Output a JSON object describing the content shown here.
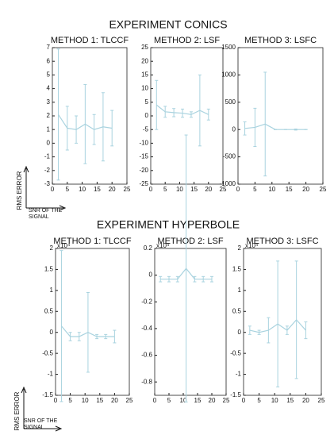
{
  "figure": {
    "sections": [
      {
        "title": "EXPERIMENT CONICS",
        "y_axis_label": "RMS ERROR",
        "x_axis_label": "SNR OF THE SIGNAL"
      },
      {
        "title": "EXPERIMENT HYPERBOLE",
        "y_axis_label": "RMS ERROR",
        "x_axis_label": "SNR OF THE SIGNAL"
      }
    ]
  },
  "chart_data": [
    {
      "type": "line",
      "title": "METHOD 1: TLCCF",
      "color": "#a9d3df",
      "x": [
        2,
        5,
        8,
        11,
        14,
        17,
        20
      ],
      "values": [
        2.1,
        1.1,
        1.0,
        1.4,
        1.0,
        1.2,
        1.1
      ],
      "errors": [
        4.8,
        1.6,
        1.0,
        2.9,
        1.1,
        2.5,
        1.3
      ],
      "xlim": [
        0,
        25
      ],
      "xticks": [
        0,
        5,
        10,
        15,
        20,
        25
      ],
      "ylim": [
        -3,
        7
      ],
      "yticks": [
        -3,
        -2,
        -1,
        0,
        1,
        2,
        3,
        4,
        5,
        6,
        7
      ]
    },
    {
      "type": "line",
      "title": "METHOD 2: LSF",
      "color": "#a9d3df",
      "x": [
        2,
        5,
        8,
        11,
        14,
        17,
        20
      ],
      "values": [
        4,
        1.5,
        1.2,
        1,
        0.5,
        2,
        0.5
      ],
      "errors": [
        9,
        2,
        1.5,
        1.5,
        1,
        13,
        2
      ],
      "xlim": [
        0,
        25
      ],
      "xticks": [
        0,
        5,
        10,
        15,
        20,
        25
      ],
      "ylim": [
        -25,
        25
      ],
      "yticks": [
        -25,
        -20,
        -15,
        -10,
        -5,
        0,
        5,
        10,
        15,
        20,
        25
      ]
    },
    {
      "type": "line",
      "title": "METHOD 3: LSFC",
      "color": "#a9d3df",
      "x": [
        2,
        5,
        8,
        11,
        14,
        17,
        20
      ],
      "values": [
        20,
        40,
        100,
        0,
        0,
        0,
        0
      ],
      "errors": [
        120,
        350,
        950,
        0,
        0,
        10,
        0
      ],
      "xlim": [
        0,
        25
      ],
      "xticks": [
        0,
        5,
        10,
        15,
        20,
        25
      ],
      "ylim": [
        -1000,
        1500
      ],
      "yticks": [
        -1000,
        -500,
        0,
        500,
        1000,
        1500
      ]
    },
    {
      "type": "line",
      "title": "METHOD 1: TLCCF",
      "y_multiplier": "x10⁴",
      "color": "#a9d3df",
      "x": [
        2,
        5,
        8,
        11,
        14,
        17,
        20
      ],
      "values": [
        0.15,
        -0.1,
        -0.1,
        0,
        -0.1,
        -0.1,
        -0.1
      ],
      "errors": [
        1.8,
        0.1,
        0.1,
        0.95,
        0.05,
        0.05,
        0.15
      ],
      "xlim": [
        0,
        25
      ],
      "xticks": [
        0,
        5,
        10,
        15,
        20,
        25
      ],
      "ylim": [
        -1.5,
        2
      ],
      "yticks": [
        -1.5,
        -1,
        -0.5,
        0,
        0.5,
        1,
        1.5,
        2
      ]
    },
    {
      "type": "line",
      "title": "METHOD 2: LSF",
      "y_multiplier": "x10⁴",
      "color": "#a9d3df",
      "x": [
        2,
        5,
        8,
        11,
        14,
        17,
        20
      ],
      "values": [
        -0.03,
        -0.03,
        -0.03,
        0.05,
        -0.03,
        -0.03,
        -0.03
      ],
      "errors": [
        0.02,
        0.02,
        0.02,
        1,
        0.02,
        0.02,
        0.02
      ],
      "xlim": [
        0,
        25
      ],
      "xticks": [
        0,
        5,
        10,
        15,
        20,
        25
      ],
      "ylim": [
        -0.9,
        0.2
      ],
      "yticks": [
        -0.8,
        -0.6,
        -0.4,
        -0.2,
        0,
        0.2
      ]
    },
    {
      "type": "line",
      "title": "METHOD 3: LSFC",
      "y_multiplier": "x10⁴",
      "color": "#a9d3df",
      "x": [
        2,
        5,
        8,
        11,
        14,
        17,
        20
      ],
      "values": [
        0.05,
        0,
        0.05,
        0.2,
        0.05,
        0.3,
        0.05
      ],
      "errors": [
        0.1,
        0.05,
        0.3,
        1.5,
        0.1,
        1.4,
        0.2
      ],
      "xlim": [
        0,
        25
      ],
      "xticks": [
        0,
        5,
        10,
        15,
        20,
        25
      ],
      "ylim": [
        -1.5,
        2
      ],
      "yticks": [
        -1.5,
        -1,
        -0.5,
        0,
        0.5,
        1,
        1.5,
        2
      ]
    }
  ]
}
